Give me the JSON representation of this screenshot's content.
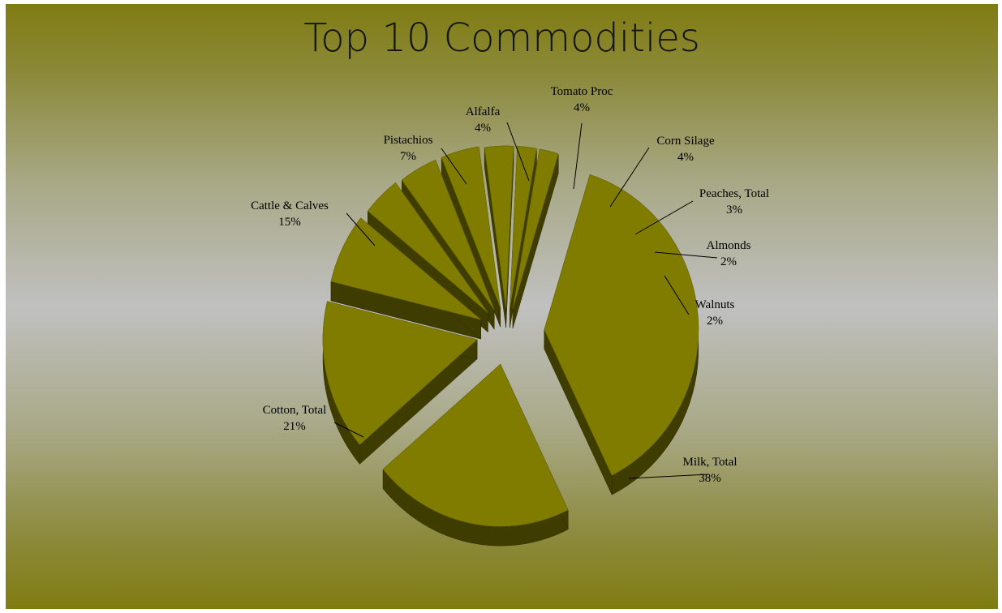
{
  "chart_data": {
    "type": "pie",
    "title": "Top 10 Commodities",
    "slices": [
      {
        "label": "Milk, Total",
        "pct_label": "38%",
        "value": 38
      },
      {
        "label": "Cotton, Total",
        "pct_label": "21%",
        "value": 21
      },
      {
        "label": "Cattle & Calves",
        "pct_label": "15%",
        "value": 15
      },
      {
        "label": "Pistachios",
        "pct_label": "7%",
        "value": 7
      },
      {
        "label": "Alfalfa",
        "pct_label": "4%",
        "value": 4
      },
      {
        "label": "Tomato Proc",
        "pct_label": "4%",
        "value": 4
      },
      {
        "label": "Corn Silage",
        "pct_label": "4%",
        "value": 4
      },
      {
        "label": "Peaches, Total",
        "pct_label": "3%",
        "value": 3
      },
      {
        "label": "Almonds",
        "pct_label": "2%",
        "value": 2
      },
      {
        "label": "Walnuts",
        "pct_label": "2%",
        "value": 2
      }
    ],
    "exploded": true,
    "three_d": true,
    "legend": "none",
    "colors": {
      "top": "#807c00",
      "side": "#3f3c00",
      "edge": "#2d2b00"
    }
  }
}
